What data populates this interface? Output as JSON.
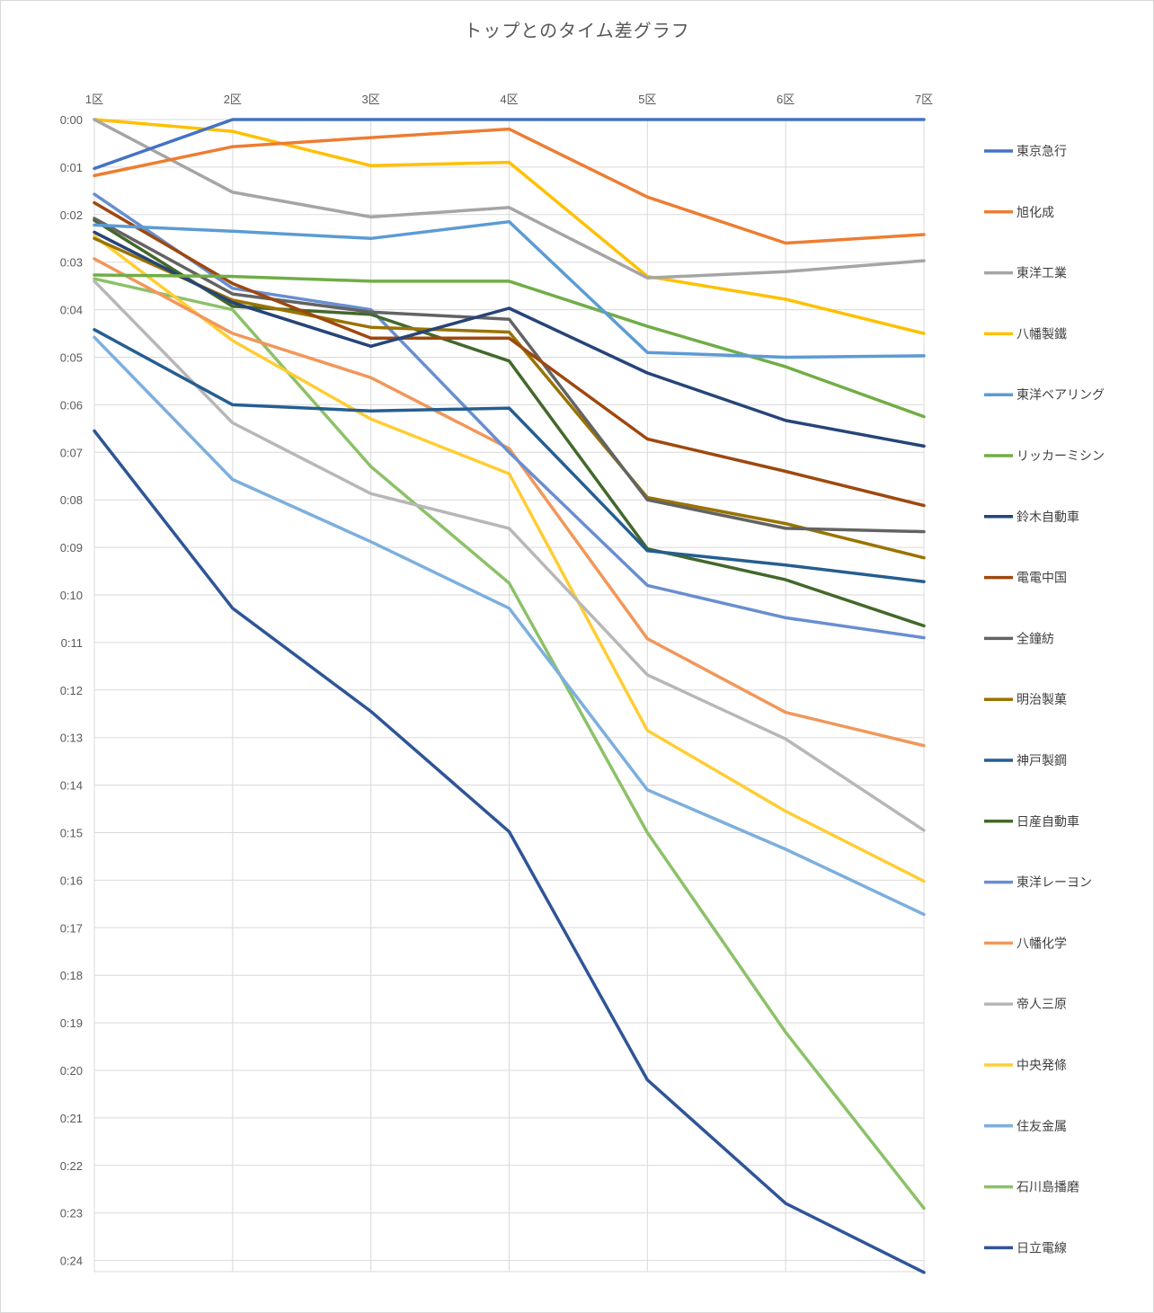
{
  "chart_data": {
    "type": "line",
    "title": "トップとのタイム差グラフ",
    "xlabel": "",
    "ylabel": "",
    "categories": [
      "1区",
      "2区",
      "3区",
      "4区",
      "5区",
      "6区",
      "7区"
    ],
    "y_axis": {
      "unit": "minutes",
      "inverted": true,
      "ylim": [
        0,
        24.25
      ],
      "tick_labels": [
        "0:00",
        "0:01",
        "0:02",
        "0:03",
        "0:04",
        "0:05",
        "0:06",
        "0:07",
        "0:08",
        "0:09",
        "0:10",
        "0:11",
        "0:12",
        "0:13",
        "0:14",
        "0:15",
        "0:16",
        "0:17",
        "0:18",
        "0:19",
        "0:20",
        "0:21",
        "0:22",
        "0:23",
        "0:24"
      ]
    },
    "grid": true,
    "legend_position": "right",
    "series": [
      {
        "name": "東京急行",
        "color": "#4472C4",
        "values": [
          1.03,
          0,
          0,
          0,
          0,
          0,
          0
        ]
      },
      {
        "name": "旭化成",
        "color": "#ED7D31",
        "values": [
          1.18,
          0.57,
          0.38,
          0.2,
          1.63,
          2.6,
          2.42
        ]
      },
      {
        "name": "東洋工業",
        "color": "#A5A5A5",
        "values": [
          0,
          1.53,
          2.05,
          1.85,
          3.33,
          3.2,
          2.97
        ]
      },
      {
        "name": "八幡製鐵",
        "color": "#FFC000",
        "values": [
          0,
          0.25,
          0.97,
          0.9,
          3.3,
          3.78,
          4.5
        ]
      },
      {
        "name": "東洋ベアリング",
        "color": "#5B9BD5",
        "values": [
          2.22,
          2.35,
          2.5,
          2.15,
          4.9,
          5.0,
          4.97
        ]
      },
      {
        "name": "リッカーミシン",
        "color": "#70AD47",
        "values": [
          3.27,
          3.3,
          3.4,
          3.4,
          4.35,
          5.2,
          6.25
        ]
      },
      {
        "name": "鈴木自動車",
        "color": "#264478",
        "values": [
          2.37,
          3.85,
          4.77,
          3.97,
          5.33,
          6.33,
          6.87
        ]
      },
      {
        "name": "電電中国",
        "color": "#9E480E",
        "values": [
          1.75,
          3.45,
          4.6,
          4.6,
          6.72,
          7.4,
          8.12
        ]
      },
      {
        "name": "全鐘紡",
        "color": "#636363",
        "values": [
          2.08,
          3.67,
          4.05,
          4.2,
          8.0,
          8.6,
          8.67
        ]
      },
      {
        "name": "明治製菓",
        "color": "#997300",
        "values": [
          2.5,
          3.8,
          4.37,
          4.47,
          7.95,
          8.5,
          9.22
        ]
      },
      {
        "name": "神戸製鋼",
        "color": "#255E91",
        "values": [
          4.42,
          6.0,
          6.13,
          6.07,
          9.07,
          9.37,
          9.72
        ]
      },
      {
        "name": "日産自動車",
        "color": "#43682B",
        "values": [
          2.12,
          3.93,
          4.1,
          5.08,
          9.03,
          9.68,
          10.65
        ]
      },
      {
        "name": "東洋レーヨン",
        "color": "#698ED0",
        "values": [
          1.57,
          3.55,
          4.0,
          7.0,
          9.8,
          10.48,
          10.9
        ]
      },
      {
        "name": "八幡化学",
        "color": "#F1975A",
        "values": [
          2.93,
          4.5,
          5.43,
          6.92,
          10.92,
          12.47,
          13.17
        ]
      },
      {
        "name": "帝人三原",
        "color": "#B7B7B7",
        "values": [
          3.4,
          6.38,
          7.87,
          8.6,
          11.68,
          13.03,
          14.95
        ]
      },
      {
        "name": "中央発條",
        "color": "#FFCD33",
        "values": [
          2.45,
          4.65,
          6.3,
          7.45,
          12.85,
          14.55,
          16.02
        ]
      },
      {
        "name": "住友金属",
        "color": "#7CAFDD",
        "values": [
          4.58,
          7.57,
          8.88,
          10.28,
          14.1,
          15.35,
          16.72
        ]
      },
      {
        "name": "石川島播磨",
        "color": "#8CC168",
        "values": [
          3.35,
          4.0,
          7.3,
          9.75,
          15.0,
          19.2,
          22.9
        ]
      },
      {
        "name": "日立電線",
        "color": "#2F5597",
        "values": [
          6.55,
          10.28,
          12.45,
          14.98,
          20.2,
          22.8,
          24.25
        ]
      }
    ]
  }
}
